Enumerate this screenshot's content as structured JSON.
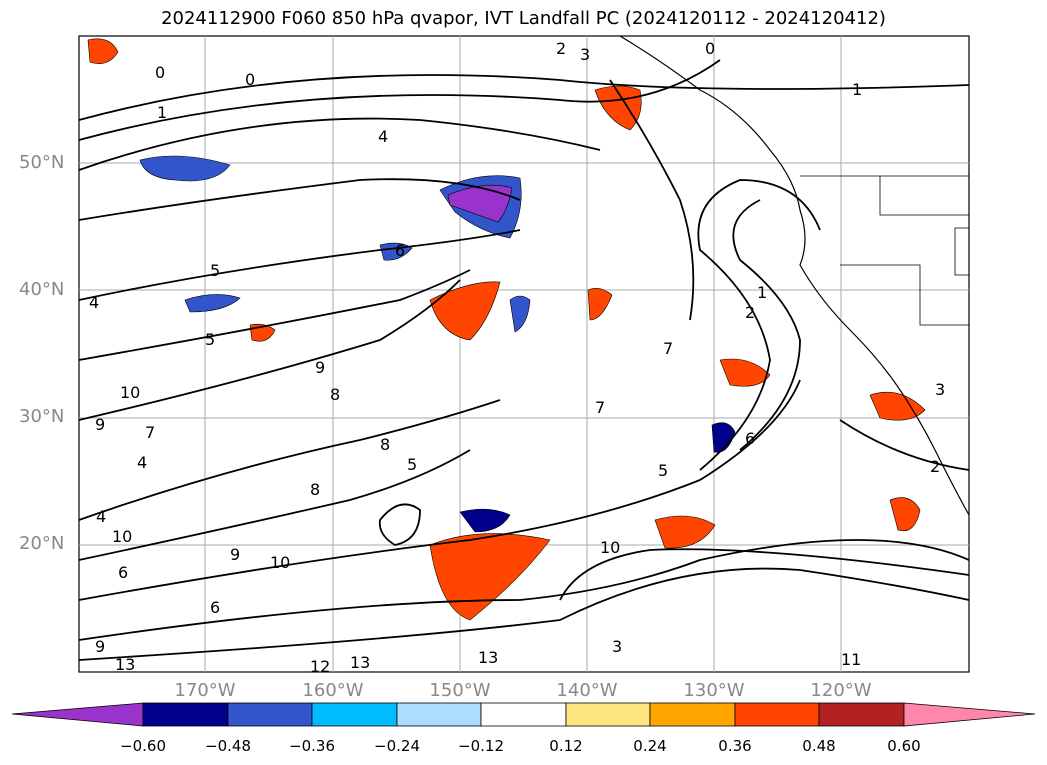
{
  "title": "2024112900 F060 850 hPa qvapor, IVT Landfall PC (2024120112 - 2024120412)",
  "lat_labels": [
    "50°N",
    "40°N",
    "30°N",
    "20°N"
  ],
  "lon_labels": [
    "170°W",
    "160°W",
    "150°W",
    "140°W",
    "130°W",
    "120°W"
  ],
  "map_extent": {
    "lon": [
      -180,
      -110
    ],
    "lat": [
      10,
      60
    ]
  },
  "colorbar": {
    "ticks": [
      "−0.60",
      "−0.48",
      "−0.36",
      "−0.24",
      "−0.12",
      "0.12",
      "0.24",
      "0.36",
      "0.48",
      "0.60"
    ],
    "colors": [
      "#9933cc",
      "#00008b",
      "#3355cc",
      "#00bbff",
      "#aaddff",
      "#ffffff",
      "#ffe680",
      "#ffa500",
      "#ff4500",
      "#b22222",
      "#ff88aa"
    ]
  },
  "contour_labels": [
    "0",
    "1",
    "2",
    "3",
    "4",
    "5",
    "6",
    "7",
    "8",
    "9",
    "10",
    "11",
    "12",
    "13"
  ],
  "colors": {
    "grid": "#aaaaaa",
    "coast": "#000000",
    "contour": "#000000",
    "axis_text": "#888888"
  }
}
